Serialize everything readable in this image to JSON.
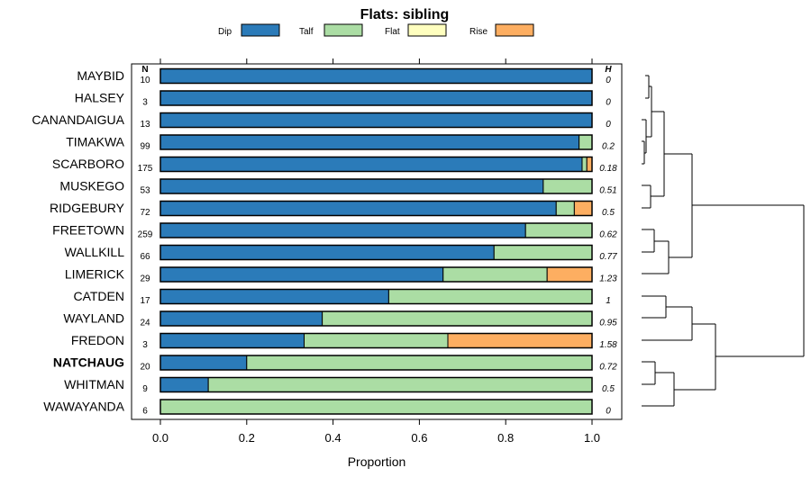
{
  "chart_data": {
    "type": "bar",
    "orientation": "horizontal",
    "stacked": true,
    "title": "Flats: sibling",
    "xlabel": "Proportion",
    "xlim": [
      0,
      1
    ],
    "x_ticks": [
      "0.0",
      "0.2",
      "0.4",
      "0.6",
      "0.8",
      "1.0"
    ],
    "x_tick_values": [
      0,
      0.2,
      0.4,
      0.6,
      0.8,
      1.0
    ],
    "n_header": "N",
    "h_header": "H",
    "legend": [
      {
        "name": "Dip",
        "color": "#2b7bb9"
      },
      {
        "name": "Talf",
        "color": "#abdda4"
      },
      {
        "name": "Flat",
        "color": "#ffffbf"
      },
      {
        "name": "Rise",
        "color": "#fdae61"
      }
    ],
    "rows": [
      {
        "name": "MAYBID",
        "n": "10",
        "h": "0",
        "values": [
          1.0,
          0,
          0,
          0
        ],
        "bold": false
      },
      {
        "name": "HALSEY",
        "n": "3",
        "h": "0",
        "values": [
          1.0,
          0,
          0,
          0
        ],
        "bold": false
      },
      {
        "name": "CANANDAIGUA",
        "n": "13",
        "h": "0",
        "values": [
          1.0,
          0,
          0,
          0
        ],
        "bold": false
      },
      {
        "name": "TIMAKWA",
        "n": "99",
        "h": "0.2",
        "values": [
          0.97,
          0.03,
          0,
          0
        ],
        "bold": false
      },
      {
        "name": "SCARBORO",
        "n": "175",
        "h": "0.18",
        "values": [
          0.977,
          0.011,
          0,
          0.012
        ],
        "bold": false
      },
      {
        "name": "MUSKEGO",
        "n": "53",
        "h": "0.51",
        "values": [
          0.887,
          0.113,
          0,
          0
        ],
        "bold": false
      },
      {
        "name": "RIDGEBURY",
        "n": "72",
        "h": "0.5",
        "values": [
          0.917,
          0.042,
          0,
          0.041
        ],
        "bold": false
      },
      {
        "name": "FREETOWN",
        "n": "259",
        "h": "0.62",
        "values": [
          0.846,
          0.154,
          0,
          0
        ],
        "bold": false
      },
      {
        "name": "WALLKILL",
        "n": "66",
        "h": "0.77",
        "values": [
          0.773,
          0.227,
          0,
          0
        ],
        "bold": false
      },
      {
        "name": "LIMERICK",
        "n": "29",
        "h": "1.23",
        "values": [
          0.655,
          0.241,
          0,
          0.104
        ],
        "bold": false
      },
      {
        "name": "CATDEN",
        "n": "17",
        "h": "1",
        "values": [
          0.529,
          0.471,
          0,
          0
        ],
        "bold": false
      },
      {
        "name": "WAYLAND",
        "n": "24",
        "h": "0.95",
        "values": [
          0.375,
          0.625,
          0,
          0
        ],
        "bold": false
      },
      {
        "name": "FREDON",
        "n": "3",
        "h": "1.58",
        "values": [
          0.333,
          0.333,
          0,
          0.334
        ],
        "bold": false
      },
      {
        "name": "NATCHAUG",
        "n": "20",
        "h": "0.72",
        "values": [
          0.2,
          0.8,
          0,
          0
        ],
        "bold": true
      },
      {
        "name": "WHITMAN",
        "n": "9",
        "h": "0.5",
        "values": [
          0.111,
          0.889,
          0,
          0
        ],
        "bold": false
      },
      {
        "name": "WAWAYANDA",
        "n": "6",
        "h": "0",
        "values": [
          0,
          1.0,
          0,
          0
        ],
        "bold": false
      }
    ]
  }
}
